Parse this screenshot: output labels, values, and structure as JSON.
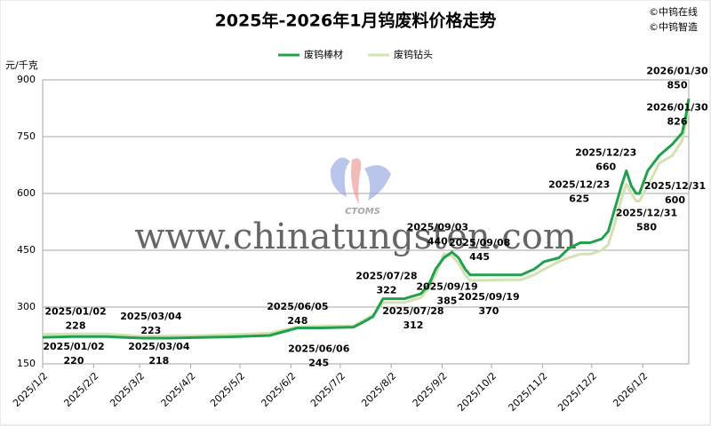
{
  "chart_data": {
    "type": "line",
    "title": "2025年-2026年1月钨废料价格走势",
    "copyright": [
      "©中钨在线",
      "©中钨智造"
    ],
    "y_label": "元/千克",
    "watermark": "www.chinatungsten.com",
    "logo_text": "CTOMS",
    "ylim": [
      150,
      900
    ],
    "yticks": [
      150,
      300,
      450,
      600,
      750,
      900
    ],
    "grid": true,
    "xlim": [
      "2025-01-02",
      "2026-01-30"
    ],
    "xticks": [
      {
        "value": "2025-01-02",
        "label": "2025/1/2"
      },
      {
        "value": "2025-02-02",
        "label": "2025/2/2"
      },
      {
        "value": "2025-03-02",
        "label": "2025/3/2"
      },
      {
        "value": "2025-04-02",
        "label": "2025/4/2"
      },
      {
        "value": "2025-05-02",
        "label": "2025/5/2"
      },
      {
        "value": "2025-06-02",
        "label": "2025/6/2"
      },
      {
        "value": "2025-07-02",
        "label": "2025/7/2"
      },
      {
        "value": "2025-08-02",
        "label": "2025/8/2"
      },
      {
        "value": "2025-09-02",
        "label": "2025/9/2"
      },
      {
        "value": "2025-10-02",
        "label": "2025/10/2"
      },
      {
        "value": "2025-11-02",
        "label": "2025/11/2"
      },
      {
        "value": "2025-12-02",
        "label": "2025/12/2"
      },
      {
        "value": "2026-01-02",
        "label": "2026/1/2"
      }
    ],
    "x": [
      "2025-01-02",
      "2025-01-20",
      "2025-02-10",
      "2025-03-04",
      "2025-03-20",
      "2025-04-10",
      "2025-05-01",
      "2025-05-20",
      "2025-06-06",
      "2025-06-20",
      "2025-07-10",
      "2025-07-15",
      "2025-07-22",
      "2025-07-28",
      "2025-08-10",
      "2025-08-20",
      "2025-08-25",
      "2025-08-29",
      "2025-09-03",
      "2025-09-08",
      "2025-09-12",
      "2025-09-16",
      "2025-09-19",
      "2025-10-10",
      "2025-10-20",
      "2025-10-28",
      "2025-11-03",
      "2025-11-12",
      "2025-11-18",
      "2025-11-25",
      "2025-12-01",
      "2025-12-08",
      "2025-12-12",
      "2025-12-16",
      "2025-12-20",
      "2025-12-23",
      "2025-12-26",
      "2025-12-29",
      "2025-12-31",
      "2026-01-05",
      "2026-01-12",
      "2026-01-20",
      "2026-01-26",
      "2026-01-28",
      "2026-01-30"
    ],
    "series": [
      {
        "name": "废钨棒材",
        "color": "#22a04b",
        "values": [
          220,
          222,
          222,
          218,
          218,
          220,
          222,
          225,
          245,
          245,
          247,
          258,
          275,
          322,
          322,
          335,
          360,
          400,
          430,
          445,
          430,
          400,
          385,
          385,
          385,
          400,
          420,
          430,
          455,
          470,
          470,
          480,
          500,
          560,
          620,
          660,
          620,
          600,
          600,
          660,
          700,
          730,
          760,
          800,
          850
        ],
        "annotations": [
          {
            "date": "2025/01/02",
            "value": 220
          },
          {
            "date": "2025/03/04",
            "value": 218
          },
          {
            "date": "2025/06/06",
            "value": 245
          },
          {
            "date": "2025/07/28",
            "value": 322
          },
          {
            "date": "2025/09/08",
            "value": 445
          },
          {
            "date": "2025/09/19",
            "value": 385
          },
          {
            "date": "2025/12/23",
            "value": 660
          },
          {
            "date": "2025/12/31",
            "value": 600
          },
          {
            "date": "2026/01/30",
            "value": 850
          }
        ]
      },
      {
        "name": "废钨钻头",
        "color": "#d3e2b2",
        "values": [
          228,
          229,
          229,
          223,
          224,
          225,
          228,
          231,
          248,
          250,
          250,
          262,
          280,
          312,
          312,
          325,
          350,
          385,
          440,
          435,
          415,
          385,
          370,
          372,
          372,
          385,
          400,
          420,
          430,
          440,
          440,
          450,
          465,
          520,
          585,
          625,
          600,
          580,
          580,
          620,
          680,
          700,
          740,
          780,
          826
        ],
        "annotations": [
          {
            "date": "2025/01/02",
            "value": 228
          },
          {
            "date": "2025/03/04",
            "value": 223
          },
          {
            "date": "2025/06/05",
            "value": 248
          },
          {
            "date": "2025/07/28",
            "value": 312
          },
          {
            "date": "2025/09/03",
            "value": 440
          },
          {
            "date": "2025/09/19",
            "value": 370
          },
          {
            "date": "2025/12/23",
            "value": 625
          },
          {
            "date": "2025/12/31",
            "value": 580
          },
          {
            "date": "2026/01/30",
            "value": 826
          }
        ]
      }
    ]
  }
}
